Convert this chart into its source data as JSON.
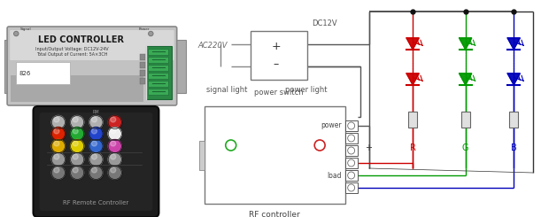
{
  "bg_color": "#ffffff",
  "fig_width": 6.11,
  "fig_height": 2.45,
  "dpi": 100,
  "colors": {
    "black": "#000000",
    "red": "#cc0000",
    "green": "#009900",
    "blue": "#0000cc",
    "gray": "#888888",
    "light_gray": "#cccccc",
    "dark_gray": "#555555",
    "wire_gray": "#999999",
    "wire_black": "#333333",
    "silver": "#b8b8b8",
    "silver_dark": "#909090"
  },
  "labels": {
    "led_controller": "LED CONTROLLER",
    "input_voltage": "Input/Output Voltage: DC12V-24V",
    "total_output": "Total Output of Current: 5A×3CH",
    "signal": "Signal",
    "power_lbl": "Power",
    "rf_remote": "RF Remote Controller",
    "ac220v": "AC220V",
    "dc12v": "DC12V",
    "power_switch": "power switch",
    "signal_light": "signal light",
    "power_light": "power light",
    "power": "power",
    "load": "load",
    "rf_controller": "RF controller",
    "plus": "+",
    "minus": "-",
    "R": "R",
    "G": "G",
    "B": "B"
  },
  "remote_button_rows": [
    [
      "#aaaaaa",
      "#aaaaaa",
      "#aaaaaa",
      "#cc0000"
    ],
    [
      "#cc2200",
      "#22aa22",
      "#2244cc",
      "#dddddd"
    ],
    [
      "#ddaa00",
      "#dddd00",
      "#2244cc",
      "#cc44cc"
    ],
    [
      "#888888",
      "#888888",
      "#888888",
      "#888888"
    ],
    [
      "#777777",
      "#777777",
      "#777777",
      "#777777"
    ]
  ]
}
